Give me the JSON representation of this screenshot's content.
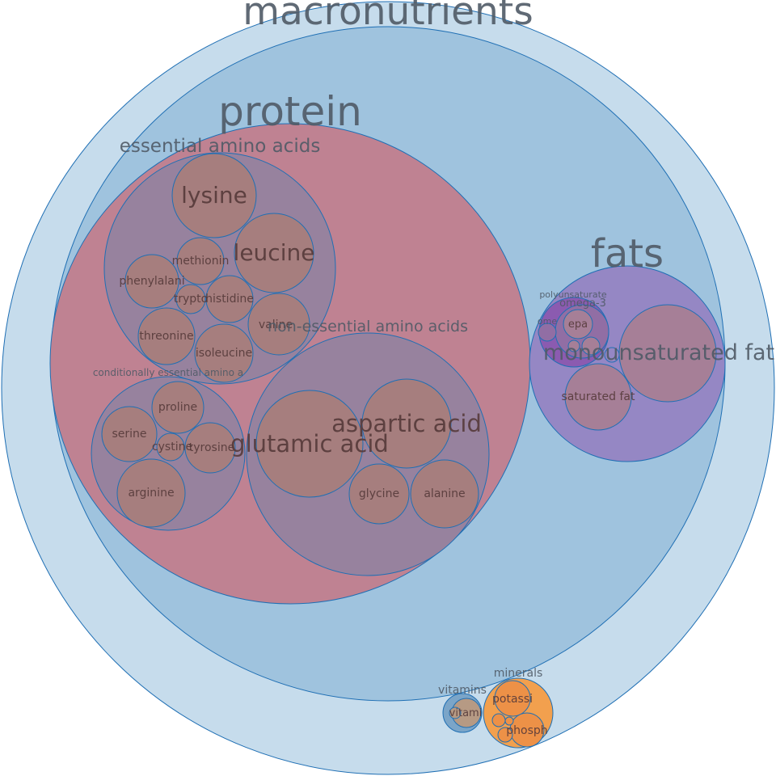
{
  "colors": {
    "outline": "#1f6fb4",
    "root": "#c6dcec",
    "macro": "#9fc3de",
    "protein": "#bf8292",
    "aminoGroup": "#97829e",
    "aminoAcid": "#a67e7e",
    "fats": "#9587c4",
    "fatLeaf": "#a67f97",
    "polyunsaturated": "#8b5bb0",
    "omega": "#916ea4",
    "micro": "#7ba5c8",
    "vitaminLeaf": "#b69a84",
    "minerals": "#f2a04e",
    "mineralLeaf": "#ed9147",
    "labelDark": "#4f5a66",
    "labelLeaf": "#553a3a"
  },
  "labels": {
    "root": "macronutrients",
    "protein": "protein",
    "essential": "essential amino acids",
    "nonEssential": "non-essential amino acids",
    "conditional": "conditionally essential amino a",
    "fats": "fats",
    "polyunsaturated": "polyunsaturate",
    "omega3": "omega-3",
    "vitamins": "vitamins",
    "minerals": "minerals"
  },
  "leaves": {
    "lysine": "lysine",
    "leucine": "leucine",
    "methionine": "methionin",
    "phenylalanine": "phenylalani",
    "tryptophan": "trypto",
    "histidine": "histidine",
    "threonine": "threonine",
    "isoleucine": "isoleucine",
    "valine": "valine",
    "glutamic": "glutamic acid",
    "aspartic": "aspartic acid",
    "glycine": "glycine",
    "alanine": "alanine",
    "proline": "proline",
    "serine": "serine",
    "cystine": "cystine",
    "tyrosine": "tyrosine",
    "arginine": "arginine",
    "monounsaturated": "monounsaturated fat",
    "saturated": "saturated fat",
    "epa": "epa",
    "omegaOther": "ome",
    "vitaminLeaf": "vitami",
    "potassium": "potassi",
    "phosphorus": "phosph"
  }
}
